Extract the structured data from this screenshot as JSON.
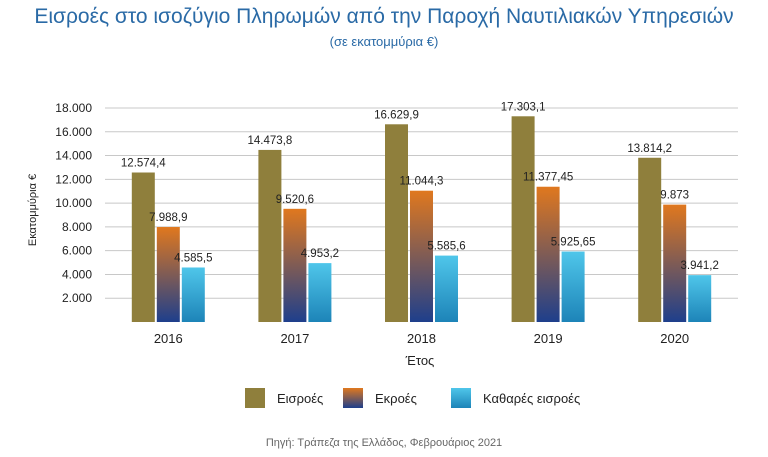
{
  "header": {
    "title": "Εισροές στο ισοζύγιο Πληρωμών από την Παροχή Ναυτιλιακών Υπηρεσιών",
    "subtitle": "(σε εκατομμύρια €)"
  },
  "source": "Πηγή: Τράπεζα της Ελλάδος, Φεβρουάριος 2021",
  "colors": {
    "inflows": "#8f7f3c",
    "outflows_top": "#e0781e",
    "outflows_bottom": "#1e3f8c",
    "net_top": "#4fc6ea",
    "net_bottom": "#1d84b8",
    "grid": "#c8c8c8"
  },
  "chart_data": {
    "type": "bar",
    "xlabel": "Έτος",
    "ylabel": "Εκατομμύρια €",
    "ylim": [
      0,
      18000
    ],
    "yticks": [
      "2.000",
      "4.000",
      "6.000",
      "8.000",
      "10.000",
      "12.000",
      "14.000",
      "16.000",
      "18.000"
    ],
    "ytick_values": [
      2000,
      4000,
      6000,
      8000,
      10000,
      12000,
      14000,
      16000,
      18000
    ],
    "grid": true,
    "legend_position": "bottom",
    "categories": [
      "2016",
      "2017",
      "2018",
      "2019",
      "2020"
    ],
    "series": [
      {
        "name": "Εισροές",
        "values": [
          12574.4,
          14473.8,
          16629.9,
          17303.1,
          13814.2
        ],
        "labels": [
          "12.574,4",
          "14.473,8",
          "16.629,9",
          "17.303,1",
          "13.814,2"
        ]
      },
      {
        "name": "Εκροές",
        "values": [
          7988.9,
          9520.6,
          11044.3,
          11377.45,
          9873
        ],
        "labels": [
          "7.988,9",
          "9.520,6",
          "11.044,3",
          "11.377,45",
          "9.873"
        ]
      },
      {
        "name": "Καθαρές εισροές",
        "values": [
          4585.5,
          4953.2,
          5585.6,
          5925.65,
          3941.2
        ],
        "labels": [
          "4.585,5",
          "4.953,2",
          "5.585,6",
          "5.925,65",
          "3.941,2"
        ]
      }
    ]
  }
}
